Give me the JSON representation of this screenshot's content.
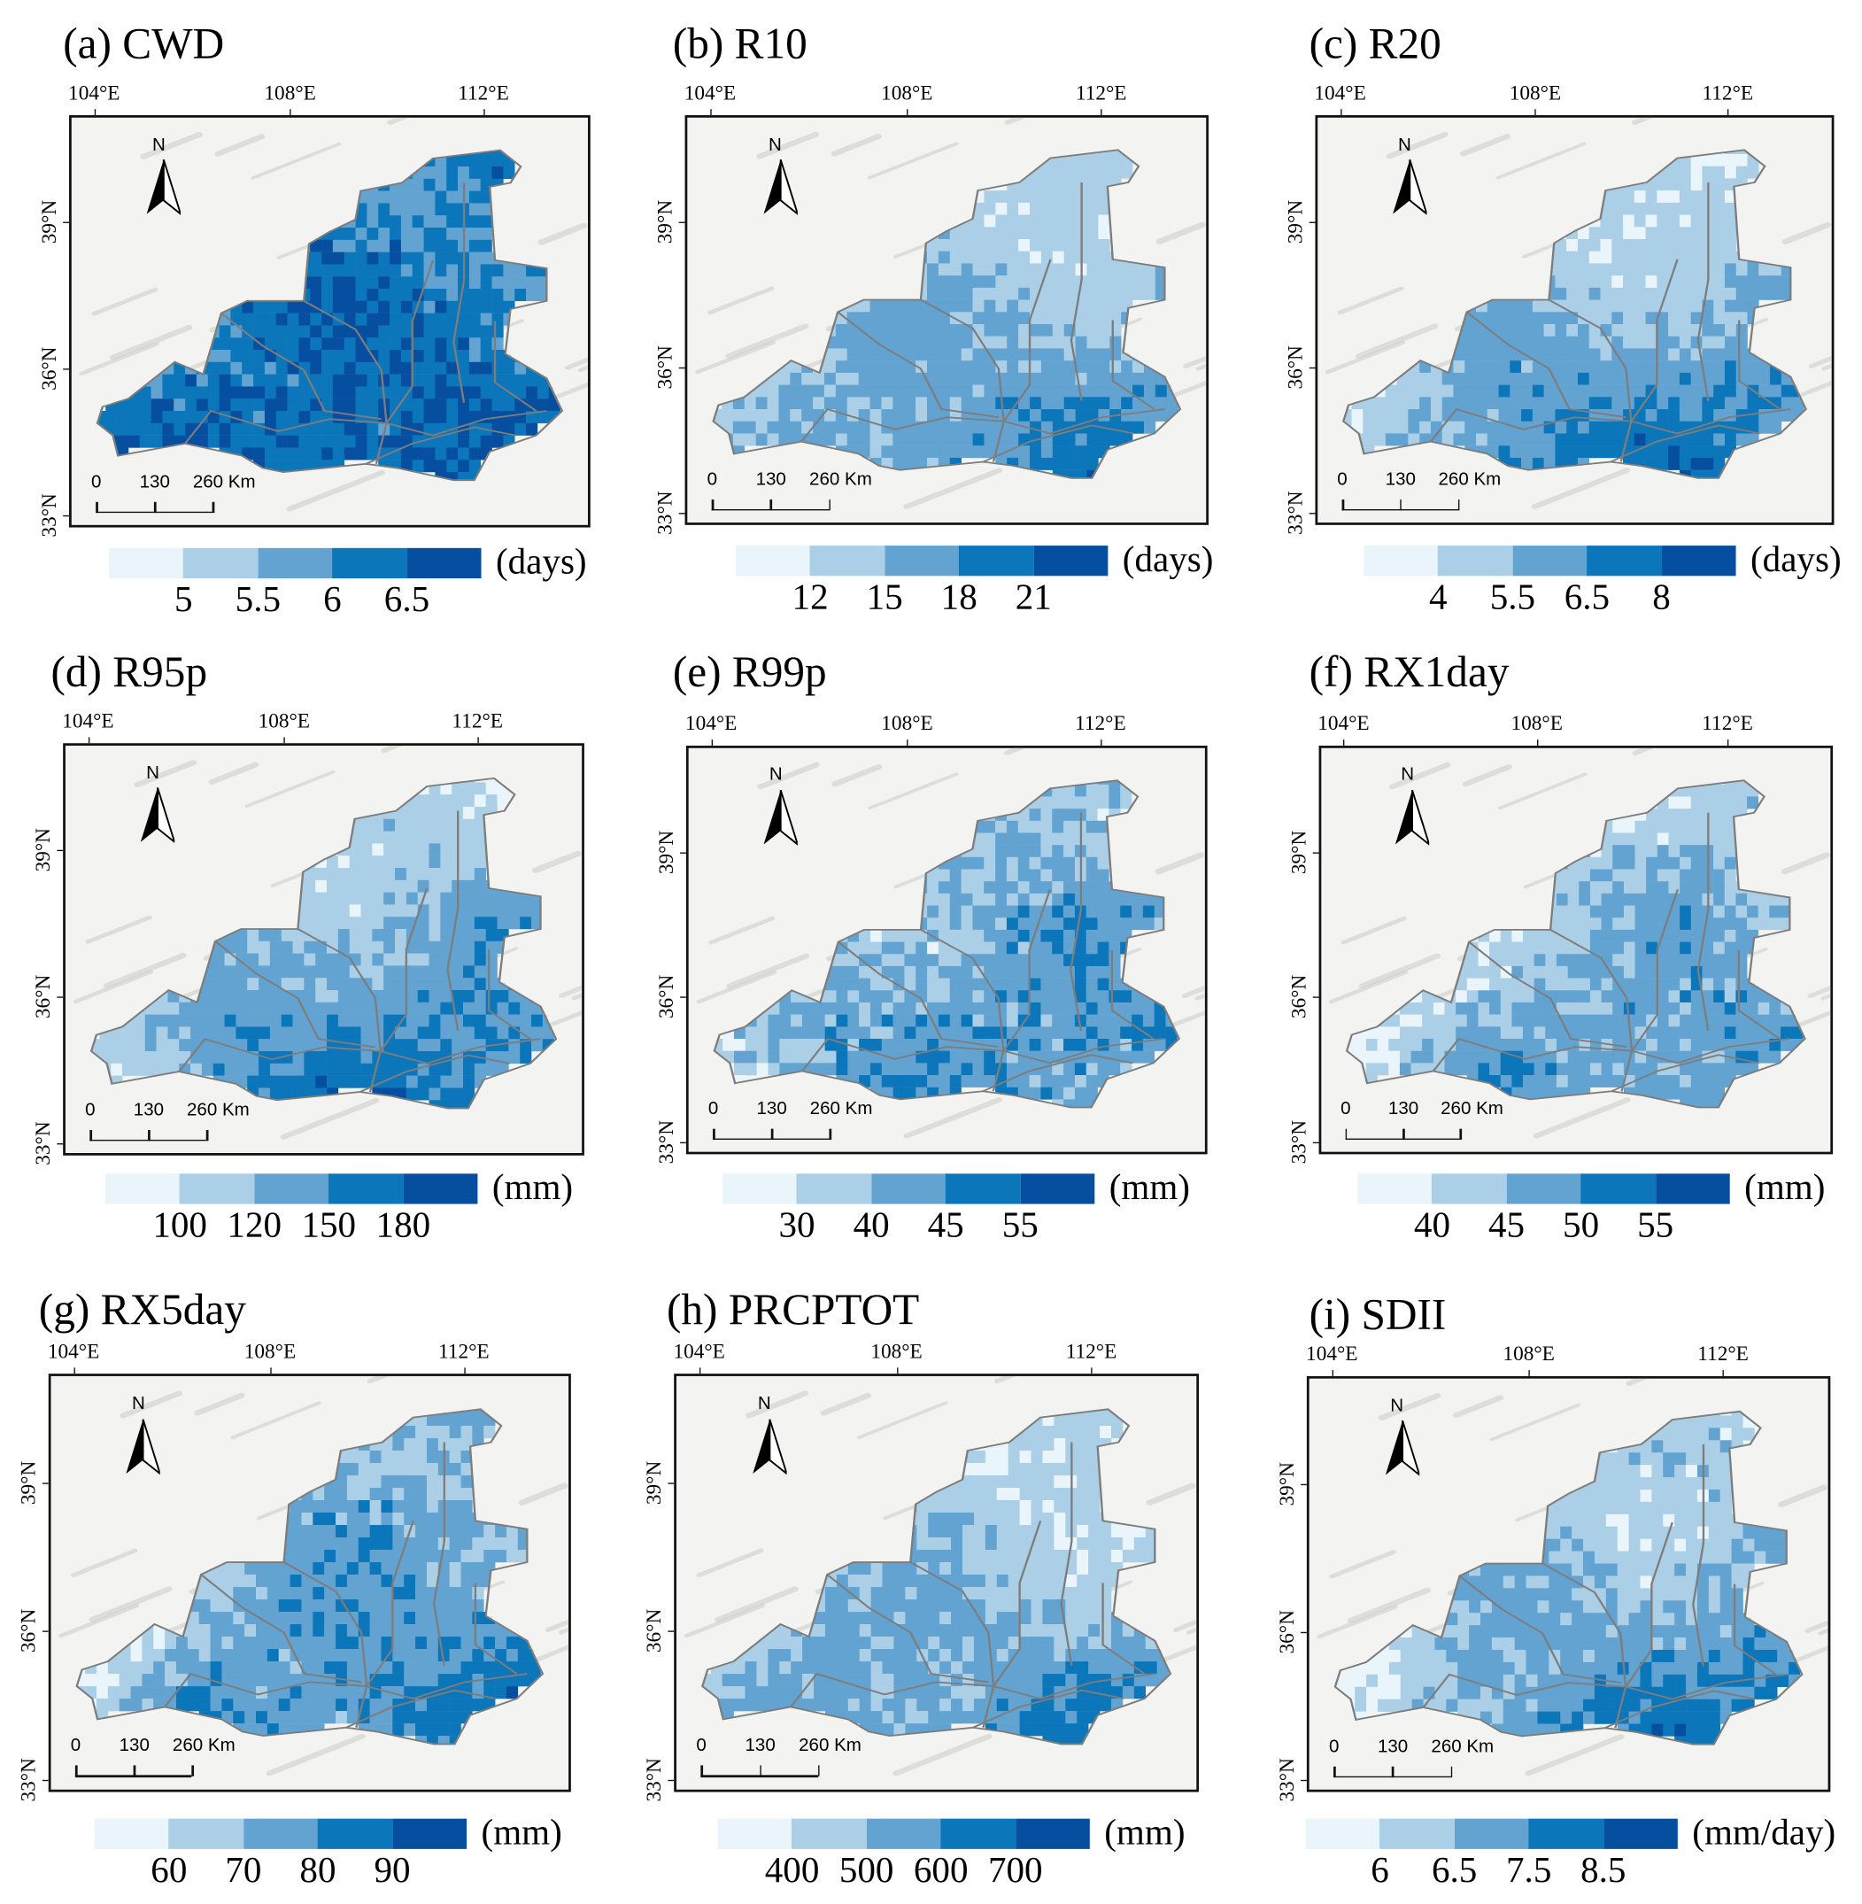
{
  "legend_colors": [
    "#eaf4fb",
    "#abcfe6",
    "#62a3d1",
    "#0b76b9",
    "#064fa0"
  ],
  "boundary_color": "#7d7d7d",
  "lon_ticks": [
    "104°E",
    "108°E",
    "112°E"
  ],
  "lat_ticks": [
    "39°N",
    "36°N",
    "33°N"
  ],
  "north_label": "N",
  "scale_bar_labels": [
    "0",
    "130",
    "260 Km"
  ],
  "panels": [
    {
      "label": "(a) CWD",
      "unit": "(days)",
      "legend_ticks": [
        "5",
        "5.5",
        "6",
        "6.5"
      ]
    },
    {
      "label": "(b) R10",
      "unit": "(days)",
      "legend_ticks": [
        "12",
        "15",
        "18",
        "21"
      ]
    },
    {
      "label": "(c) R20",
      "unit": "(days)",
      "legend_ticks": [
        "4",
        "5.5",
        "6.5",
        "8"
      ]
    },
    {
      "label": "(d) R95p",
      "unit": "(mm)",
      "legend_ticks": [
        "100",
        "120",
        "150",
        "180"
      ]
    },
    {
      "label": "(e) R99p",
      "unit": "(mm)",
      "legend_ticks": [
        "30",
        "40",
        "45",
        "55"
      ]
    },
    {
      "label": "(f) RX1day",
      "unit": "(mm)",
      "legend_ticks": [
        "40",
        "45",
        "50",
        "55"
      ]
    },
    {
      "label": "(g) RX5day",
      "unit": "(mm)",
      "legend_ticks": [
        "60",
        "70",
        "80",
        "90"
      ]
    },
    {
      "label": "(h) PRCPTOT",
      "unit": "(mm)",
      "legend_ticks": [
        "400",
        "500",
        "600",
        "700"
      ]
    },
    {
      "label": "(i) SDII",
      "unit": "(mm/day)",
      "legend_ticks": [
        "6",
        "6.5",
        "7.5",
        "8.5"
      ]
    }
  ]
}
